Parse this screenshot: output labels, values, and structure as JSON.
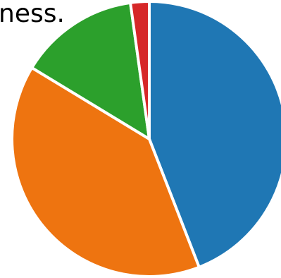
{
  "text_fragment": "ness.",
  "chart_data": {
    "type": "pie",
    "values": [
      44.0,
      39.5,
      14.1,
      2.2
    ],
    "colors": [
      "#1f77b4",
      "#ee7410",
      "#2ca02c",
      "#d62728"
    ],
    "start_angle_deg": 0,
    "direction": "clockwise",
    "separator_color": "#ffffff"
  }
}
